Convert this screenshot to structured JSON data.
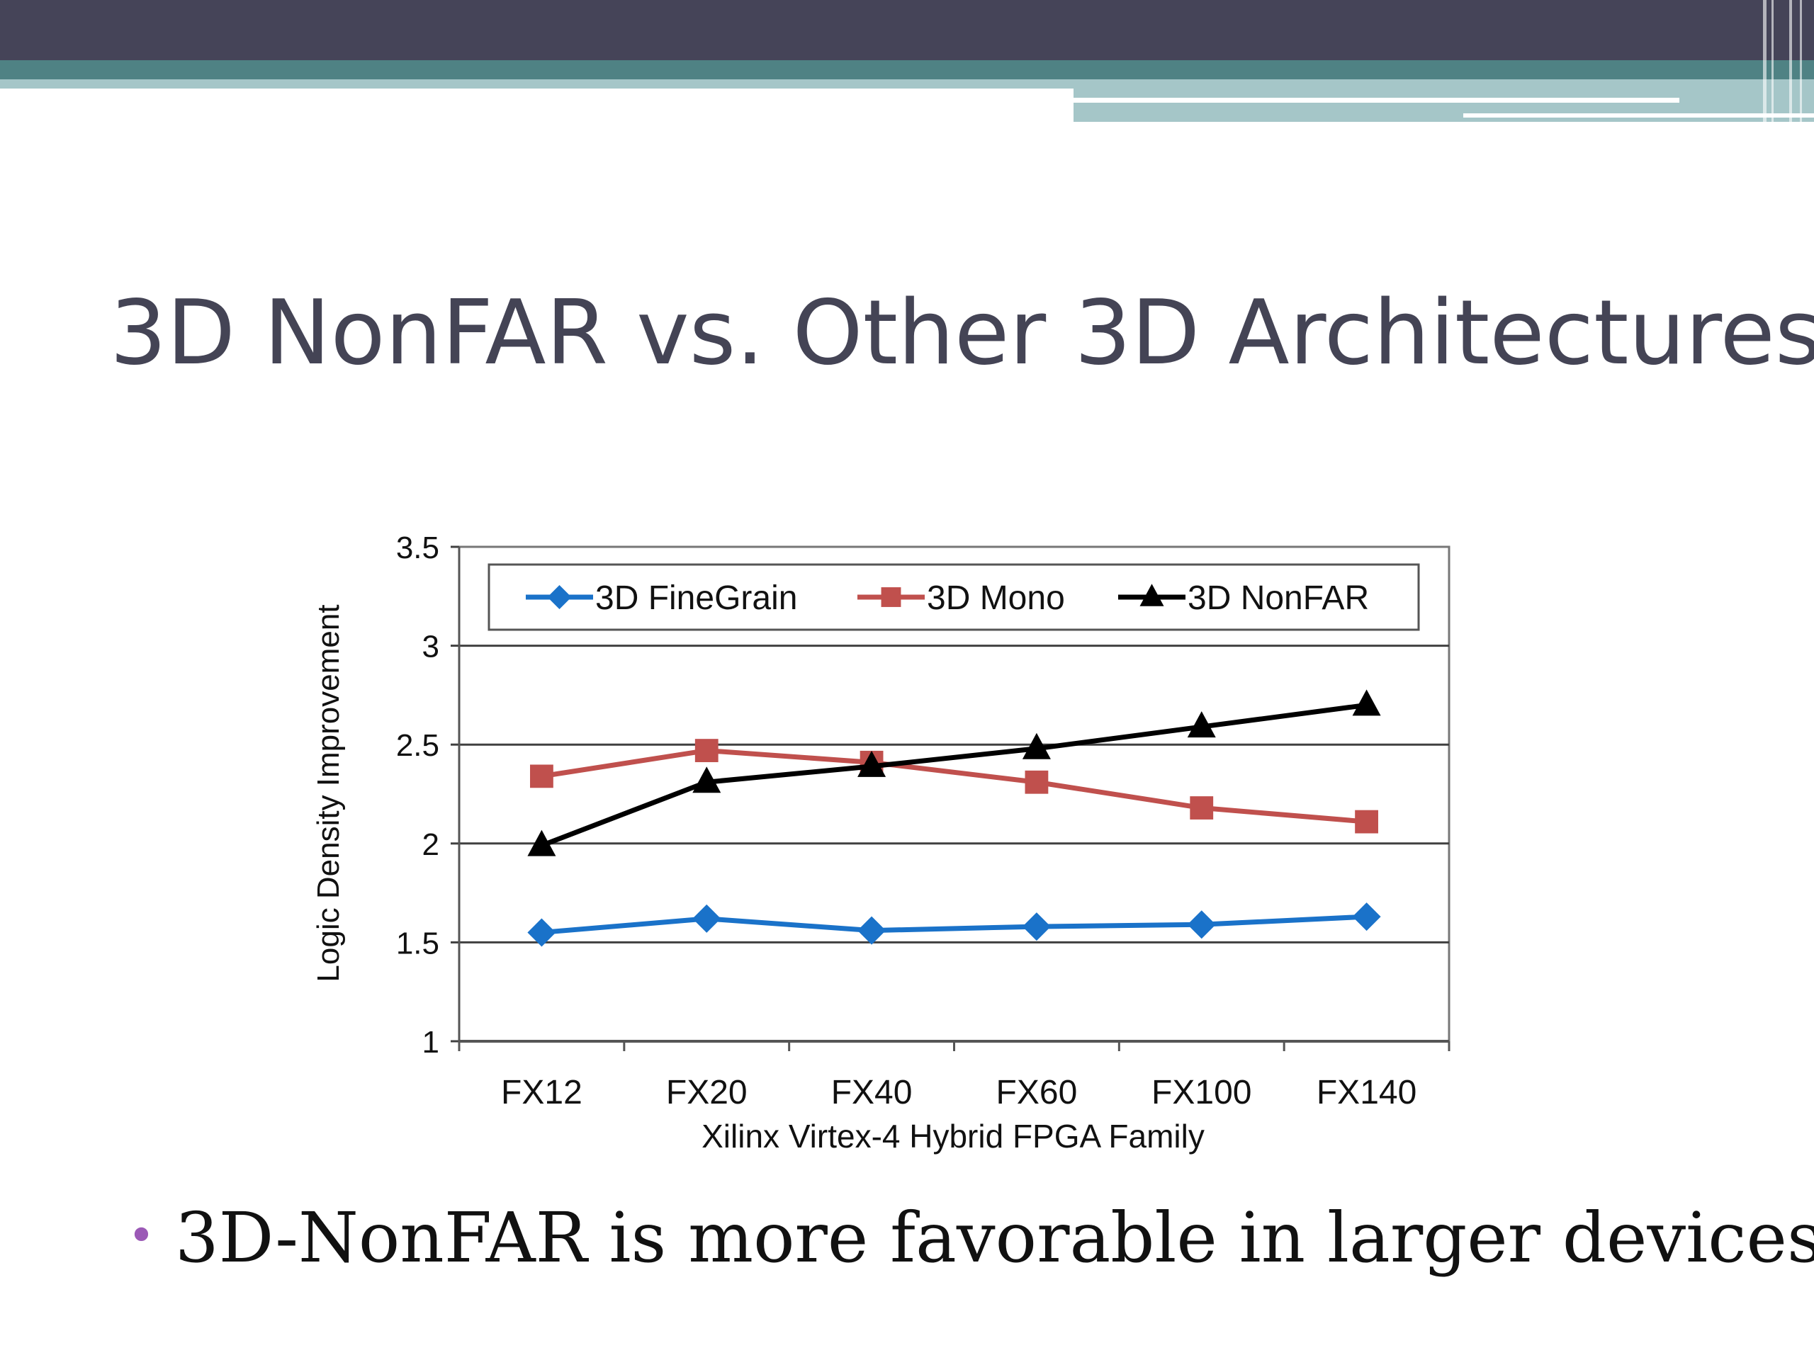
{
  "slide": {
    "title": "3D NonFAR vs. Other 3D Architectures",
    "bullet": "3D-NonFAR is more favorable in larger devices"
  },
  "colors": {
    "banner_dark": "#454458",
    "banner_teal": "#4f8284",
    "banner_light": "#a5c6c8",
    "title": "#444455",
    "bullet_dot": "#9b59b6",
    "grid": "#404040",
    "axis_text": "#111111"
  },
  "chart_data": {
    "type": "line",
    "title": "",
    "xlabel": "Xilinx Virtex-4 Hybrid FPGA Family",
    "ylabel": "Logic Density Improvement",
    "ylim": [
      1,
      3.5
    ],
    "yticks": [
      "1",
      "1.5",
      "2",
      "2.5",
      "3",
      "3.5"
    ],
    "grid": "horizontal",
    "legend": "top-inside",
    "categories": [
      "FX12",
      "FX20",
      "FX40",
      "FX60",
      "FX100",
      "FX140"
    ],
    "series": [
      {
        "name": "3D FineGrain",
        "color": "#1a72c9",
        "marker": "diamond",
        "values": [
          1.55,
          1.62,
          1.56,
          1.58,
          1.59,
          1.63
        ]
      },
      {
        "name": "3D Mono",
        "color": "#c0504d",
        "marker": "square",
        "values": [
          2.34,
          2.47,
          2.41,
          2.31,
          2.18,
          2.11
        ]
      },
      {
        "name": "3D NonFAR",
        "color": "#000000",
        "marker": "triangle",
        "values": [
          1.99,
          2.31,
          2.39,
          2.48,
          2.59,
          2.7
        ]
      }
    ]
  }
}
